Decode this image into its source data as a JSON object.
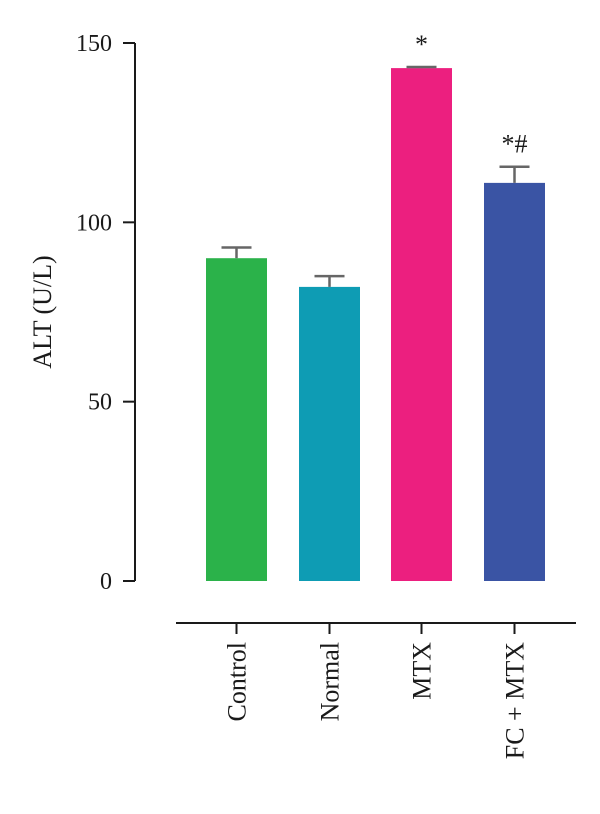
{
  "chart_data": {
    "type": "bar",
    "title": "",
    "ylabel": "ALT (U/L)",
    "xlabel": "",
    "ylim": [
      0,
      150
    ],
    "yticks": [
      0,
      50,
      100,
      150
    ],
    "categories": [
      "Control",
      "Normal",
      "MTX",
      "FC + MTX"
    ],
    "values": [
      90,
      82,
      143,
      111
    ],
    "errors": [
      3,
      3,
      0.3,
      4.5
    ],
    "annotations": [
      "",
      "",
      "*",
      "*#"
    ],
    "colors": [
      "#2bb24a",
      "#0e9cb4",
      "#ec1f7f",
      "#3a54a4"
    ],
    "grid": false,
    "legend": "none"
  }
}
